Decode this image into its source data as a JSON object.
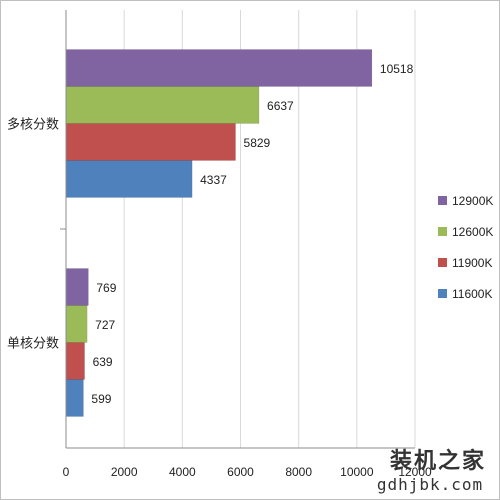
{
  "chart_data": {
    "type": "bar",
    "orientation": "horizontal",
    "categories": [
      "多核分数",
      "单核分数"
    ],
    "series": [
      {
        "name": "12900K",
        "color": "#8064a2",
        "values": [
          10518,
          769
        ]
      },
      {
        "name": "12600K",
        "color": "#9bbb59",
        "values": [
          6637,
          727
        ]
      },
      {
        "name": "11900K",
        "color": "#c0504d",
        "values": [
          5829,
          639
        ]
      },
      {
        "name": "11600K",
        "color": "#4f81bd",
        "values": [
          4337,
          599
        ]
      }
    ],
    "xlim": [
      0,
      12000
    ],
    "xticks": [
      "0",
      "2000",
      "4000",
      "6000",
      "8000",
      "10000",
      "12000"
    ],
    "grid": "vertical",
    "legend": "right",
    "title": "",
    "xlabel": "",
    "ylabel": ""
  },
  "watermark": {
    "line1": "装机之家",
    "line2": "gdhjbk.com"
  }
}
